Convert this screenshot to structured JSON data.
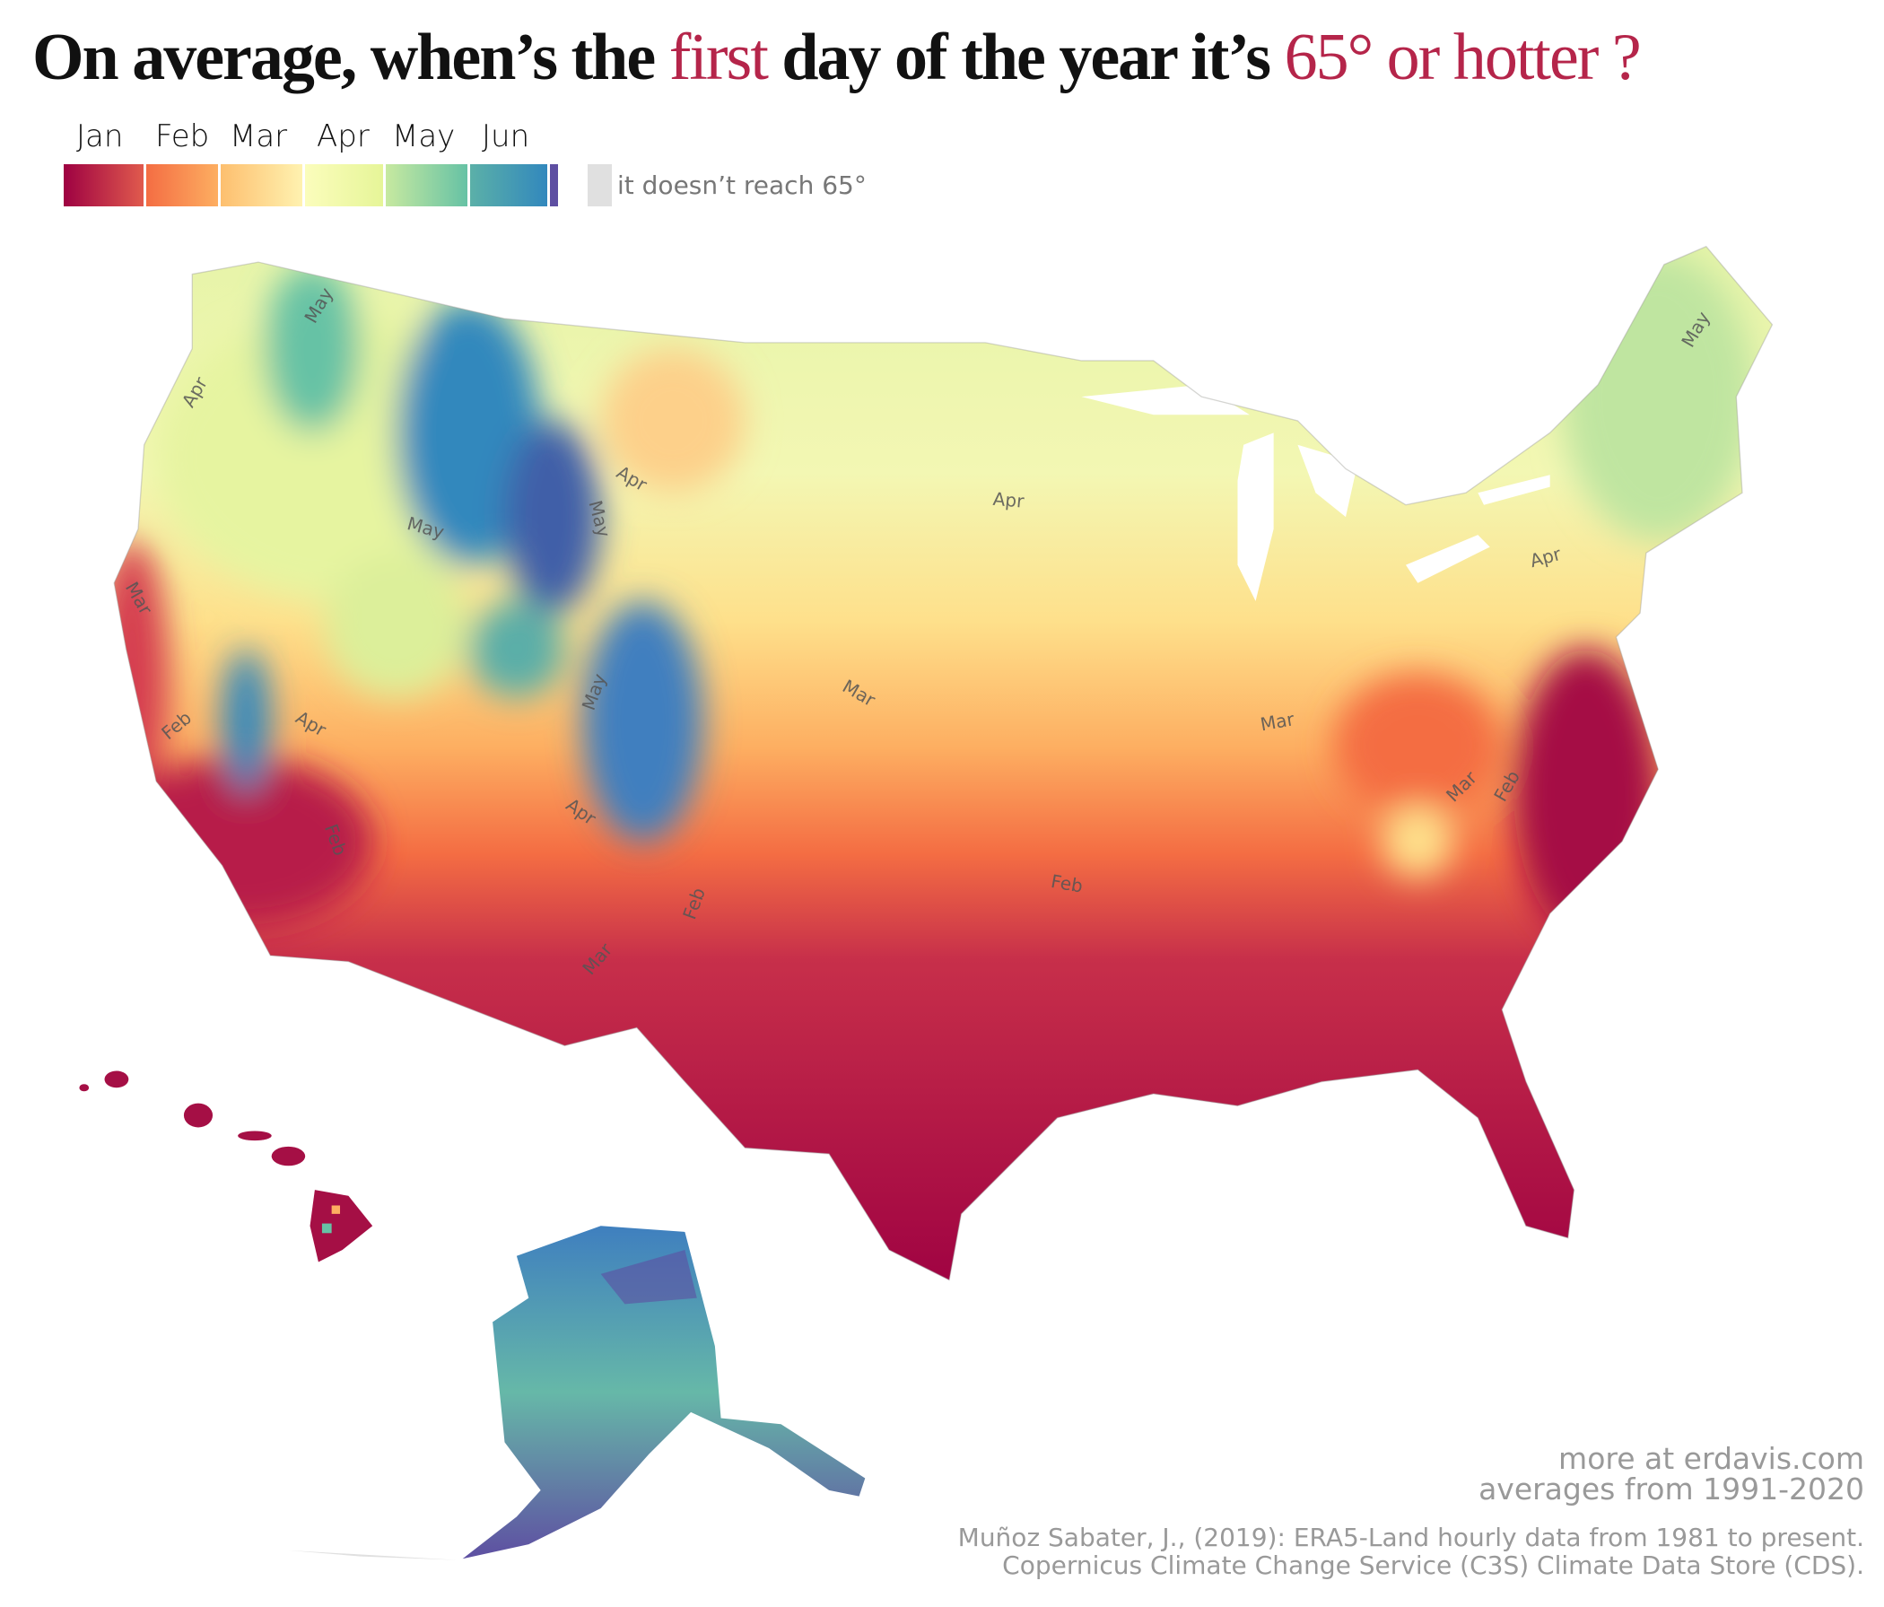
{
  "title": {
    "part1": "On average, when’s the ",
    "highlight1": "first",
    "part2": " day of the year it’s ",
    "highlight2": "65° or hotter ?",
    "highlight_color": "#b5254a"
  },
  "legend": {
    "months": [
      "Jan",
      "Feb",
      "Mar",
      "Apr",
      "May",
      "Jun"
    ],
    "segments": [
      {
        "month": "Jan",
        "from": "#9e0142",
        "to": "#e05a4d"
      },
      {
        "month": "Feb",
        "from": "#f46d43",
        "to": "#fdae61"
      },
      {
        "month": "Mar",
        "from": "#fdbf6f",
        "to": "#fff2b0"
      },
      {
        "month": "Apr",
        "from": "#fbfdbc",
        "to": "#e6f598"
      },
      {
        "month": "May",
        "from": "#c7e9a0",
        "to": "#66c2a5"
      },
      {
        "month": "Jun",
        "from": "#5bb0a8",
        "to": "#3288bd"
      },
      {
        "month": "",
        "from": "#5e4fa2",
        "to": "#5e4fa2"
      }
    ],
    "no_reach_label": "it doesn’t reach 65°",
    "no_reach_color": "#e0e0e0"
  },
  "map": {
    "contour_labels": [
      "May",
      "Apr",
      "May",
      "Apr",
      "May",
      "Apr",
      "May",
      "Mar",
      "Apr",
      "Mar",
      "Mar",
      "May",
      "Feb",
      "Apr",
      "Mar",
      "Feb",
      "Apr",
      "Feb",
      "Feb",
      "Feb",
      "Mar"
    ]
  },
  "footer": {
    "more": "more at erdavis.com",
    "averages": "averages from 1991-2020",
    "citation_line1": "Muñoz Sabater, J., (2019): ERA5-Land hourly data from 1981 to present.",
    "citation_line2": "Copernicus Climate Change Service (C3S) Climate Data Store (CDS)."
  }
}
